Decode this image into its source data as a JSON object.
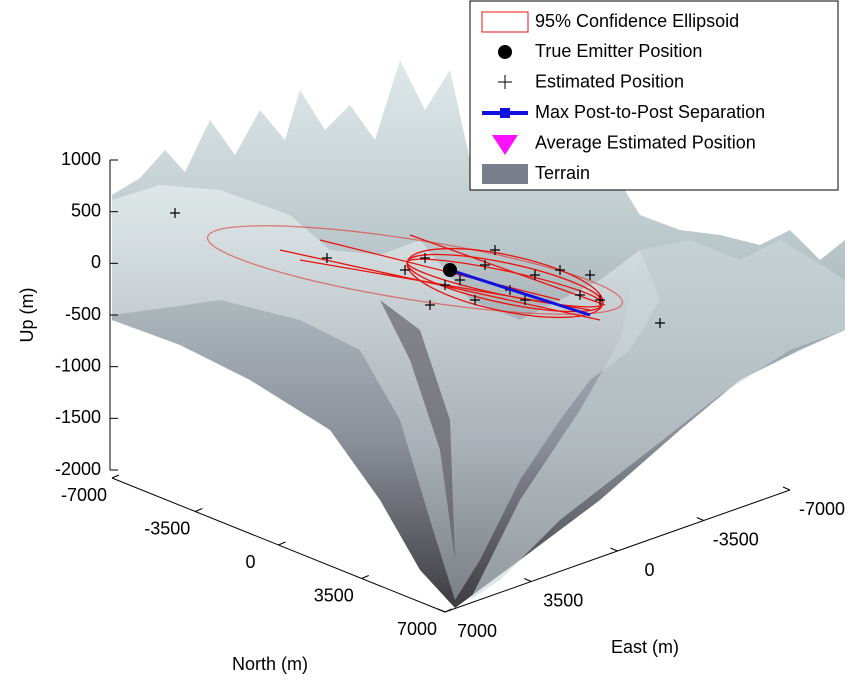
{
  "chart_data": {
    "type": "surface3d",
    "xlabel": "North (m)",
    "ylabel": "East (m)",
    "zlabel": "Up (m)",
    "xlim": [
      -7000,
      7000
    ],
    "xticks": [
      -7000,
      -3500,
      0,
      3500,
      7000
    ],
    "ylim": [
      -7000,
      7000
    ],
    "yticks": [
      -7000,
      -3500,
      0,
      3500,
      7000
    ],
    "zlim": [
      -2000,
      1000
    ],
    "zticks": [
      -2000,
      -1500,
      -1000,
      -500,
      0,
      500,
      1000
    ],
    "legend": [
      "95% Confidence Ellipsoid",
      "True Emitter Position",
      "Estimated Position",
      "Max Post-to-Post Separation",
      "Average Estimated Position",
      "Terrain"
    ]
  }
}
